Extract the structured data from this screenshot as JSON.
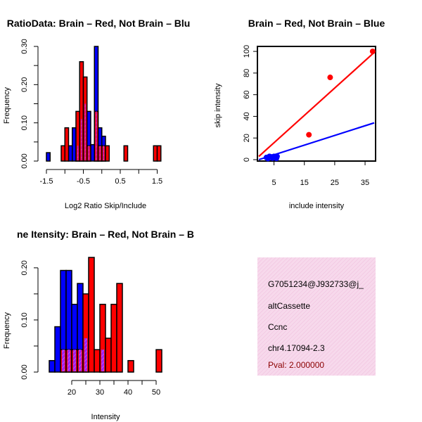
{
  "colors": {
    "red": "#ff0000",
    "blue": "#0000ff",
    "overlap": "#a020f0",
    "info_bg": "#f7d9ec",
    "info_hatch": "#f0b6d8",
    "pval": "#8b0000"
  },
  "chart_data": [
    {
      "type": "bar",
      "title": "RatioData: Brain – Red, Not Brain – Blue",
      "title_visible": "RatioData: Brain – Red, Not Brain – Blu",
      "xlabel": "Log2 Ratio Skip/Include",
      "ylabel": "Frequency",
      "xlim": [
        -1.5,
        1.7
      ],
      "ylim": [
        0,
        0.3
      ],
      "xticks": [
        -1.5,
        -0.5,
        0.5,
        1.5
      ],
      "xtick_labels": [
        "-1.5",
        "-0.5",
        "0.5",
        "1.5"
      ],
      "yticks": [
        0.0,
        0.1,
        0.2,
        0.3
      ],
      "ytick_labels": [
        "0.00",
        "0.10",
        "0.20",
        "0.30"
      ],
      "bin_width": 0.1,
      "series": [
        {
          "name": "Brain",
          "color": "red",
          "bars": [
            [
              -1.1,
              0.04
            ],
            [
              -1.0,
              0.087
            ],
            [
              -0.7,
              0.13
            ],
            [
              -0.6,
              0.26
            ],
            [
              -0.5,
              0.22
            ],
            [
              -0.4,
              0.04
            ],
            [
              -0.2,
              0.13
            ],
            [
              -0.1,
              0.04
            ],
            [
              0.0,
              0.04
            ],
            [
              0.1,
              0.04
            ],
            [
              0.6,
              0.04
            ],
            [
              1.4,
              0.04
            ],
            [
              1.5,
              0.04
            ]
          ]
        },
        {
          "name": "Not Brain",
          "color": "blue",
          "bars": [
            [
              -1.5,
              0.022
            ],
            [
              -0.9,
              0.04
            ],
            [
              -0.8,
              0.087
            ],
            [
              -0.7,
              0.04
            ],
            [
              -0.6,
              0.11
            ],
            [
              -0.5,
              0.15
            ],
            [
              -0.4,
              0.13
            ],
            [
              -0.3,
              0.043
            ],
            [
              -0.2,
              0.3
            ],
            [
              -0.1,
              0.087
            ],
            [
              0.0,
              0.065
            ]
          ]
        }
      ]
    },
    {
      "type": "scatter",
      "title": "Brain – Red, Not Brain – Blue",
      "xlabel": "include intensity",
      "ylabel": "skip intensity",
      "xlim": [
        0,
        38
      ],
      "ylim": [
        0,
        102
      ],
      "xticks": [
        5,
        15,
        25,
        35
      ],
      "xtick_labels": [
        "5",
        "15",
        "25",
        "35"
      ],
      "yticks": [
        0,
        20,
        40,
        60,
        80,
        100
      ],
      "ytick_labels": [
        "0",
        "20",
        "40",
        "60",
        "80",
        "100"
      ],
      "series": [
        {
          "name": "Brain",
          "color": "red",
          "points": [
            [
              37.5,
              100
            ],
            [
              23.5,
              76
            ],
            [
              16.5,
              23
            ]
          ],
          "fit": [
            [
              0,
              3
            ],
            [
              38,
              99
            ]
          ]
        },
        {
          "name": "Not Brain",
          "color": "blue",
          "points": [
            [
              2.5,
              2
            ],
            [
              3.0,
              1
            ],
            [
              3.5,
              3
            ],
            [
              4.0,
              2
            ],
            [
              4.5,
              1.5
            ],
            [
              5.0,
              3
            ],
            [
              5.5,
              2
            ],
            [
              6.0,
              3
            ],
            [
              4.2,
              2.5
            ],
            [
              5.8,
              1.2
            ]
          ],
          "fit": [
            [
              0,
              0
            ],
            [
              38,
              34
            ]
          ]
        }
      ]
    },
    {
      "type": "bar",
      "title": "Exon Itensity: Brain – Red, Not Brain – Blue",
      "title_visible": "ne Itensity: Brain – Red, Not Brain – B",
      "xlabel": "Intensity",
      "ylabel": "Frequency",
      "xlim": [
        11,
        53
      ],
      "ylim": [
        0,
        0.22
      ],
      "xticks": [
        20,
        30,
        40,
        50
      ],
      "xtick_labels": [
        "20",
        "30",
        "40",
        "50"
      ],
      "yticks": [
        0.0,
        0.1,
        0.2
      ],
      "ytick_labels": [
        "0.00",
        "0.10",
        "0.20"
      ],
      "bin_width": 2,
      "series": [
        {
          "name": "Brain",
          "color": "red",
          "bars": [
            [
              16,
              0.043
            ],
            [
              18,
              0.043
            ],
            [
              20,
              0.043
            ],
            [
              22,
              0.043
            ],
            [
              24,
              0.15
            ],
            [
              26,
              0.22
            ],
            [
              28,
              0.043
            ],
            [
              30,
              0.13
            ],
            [
              32,
              0.065
            ],
            [
              34,
              0.13
            ],
            [
              36,
              0.17
            ],
            [
              40,
              0.022
            ],
            [
              50,
              0.043
            ]
          ]
        },
        {
          "name": "Not Brain",
          "color": "blue",
          "bars": [
            [
              12,
              0.022
            ],
            [
              14,
              0.087
            ],
            [
              16,
              0.195
            ],
            [
              18,
              0.195
            ],
            [
              20,
              0.13
            ],
            [
              22,
              0.17
            ],
            [
              24,
              0.065
            ],
            [
              30,
              0.043
            ]
          ]
        }
      ]
    }
  ],
  "info": {
    "id": "G7051234@J932733@j_",
    "event_type": "altCassette",
    "gene": "Ccnc",
    "location": "chr4.17094-2.3",
    "pval": "Pval: 2.000000"
  }
}
